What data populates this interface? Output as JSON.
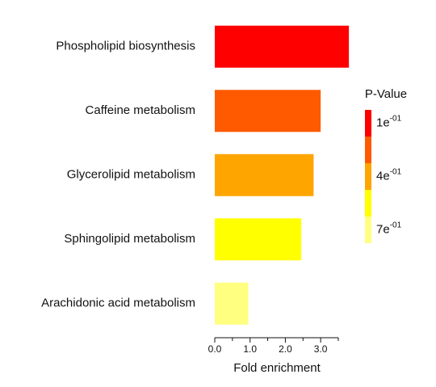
{
  "chart_data": {
    "type": "hbar",
    "categories": [
      "Phospholipid biosynthesis",
      "Caffeine metabolism",
      "Glycerolipid metabolism",
      "Sphingolipid metabolism",
      "Arachidonic acid metabolism"
    ],
    "values": [
      3.8,
      3.0,
      2.8,
      2.45,
      0.95
    ],
    "colors": [
      "#ff0000",
      "#ff5a00",
      "#ffa500",
      "#ffff00",
      "#ffff80"
    ],
    "x_label": "Fold enrichment",
    "xlim": [
      0,
      3.5
    ],
    "xticks": [
      {
        "value": 0,
        "label": "0.0"
      },
      {
        "value": 1,
        "label": "1.0"
      },
      {
        "value": 2,
        "label": "2.0"
      },
      {
        "value": 3,
        "label": "3.0"
      }
    ],
    "xminor_ticks": [
      0.5,
      1.5,
      2.5,
      3.5
    ],
    "legend": {
      "title": "P-Value",
      "colors": [
        "#ff0000",
        "#ff5a00",
        "#ffa500",
        "#ffff00",
        "#ffff80"
      ],
      "labels": [
        {
          "base": "1e",
          "exponent": "-01"
        },
        {
          "base": "4e",
          "exponent": "-01"
        },
        {
          "base": "7e",
          "exponent": "-01"
        }
      ]
    }
  }
}
